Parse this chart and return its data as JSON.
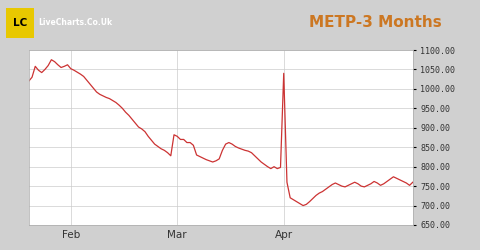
{
  "title": "METP-3 Months",
  "title_fontsize": 11,
  "title_color": "#cc7722",
  "bg_color": "#d0d0d0",
  "header_color": "#d0d0d0",
  "plot_bg_color": "#ffffff",
  "line_color": "#cc3333",
  "ylim": [
    650,
    1100
  ],
  "yticks": [
    650,
    700,
    750,
    800,
    850,
    900,
    950,
    1000,
    1050,
    1100
  ],
  "xlabel_ticks": [
    "Feb",
    "Mar",
    "Apr"
  ],
  "xtick_positions": [
    13,
    46,
    79
  ],
  "logo_bg": "#111111",
  "logo_text_lc": "LC",
  "logo_text_site": "LiveCharts.Co.Uk",
  "prices": [
    1020,
    1030,
    1058,
    1048,
    1042,
    1050,
    1060,
    1075,
    1070,
    1062,
    1055,
    1058,
    1062,
    1052,
    1048,
    1043,
    1038,
    1032,
    1022,
    1012,
    1002,
    992,
    986,
    982,
    978,
    975,
    970,
    965,
    958,
    950,
    940,
    932,
    922,
    912,
    902,
    897,
    890,
    878,
    868,
    858,
    852,
    846,
    842,
    836,
    828,
    882,
    878,
    870,
    870,
    862,
    862,
    855,
    830,
    826,
    822,
    818,
    815,
    812,
    815,
    820,
    842,
    858,
    862,
    858,
    852,
    848,
    845,
    842,
    840,
    836,
    828,
    820,
    812,
    806,
    800,
    795,
    800,
    795,
    798,
    1040,
    760,
    720,
    715,
    710,
    705,
    700,
    703,
    710,
    718,
    726,
    732,
    736,
    742,
    748,
    754,
    758,
    754,
    750,
    748,
    752,
    756,
    760,
    756,
    750,
    748,
    752,
    756,
    762,
    758,
    752,
    756,
    762,
    768,
    774,
    770,
    766,
    762,
    758,
    752,
    760
  ]
}
